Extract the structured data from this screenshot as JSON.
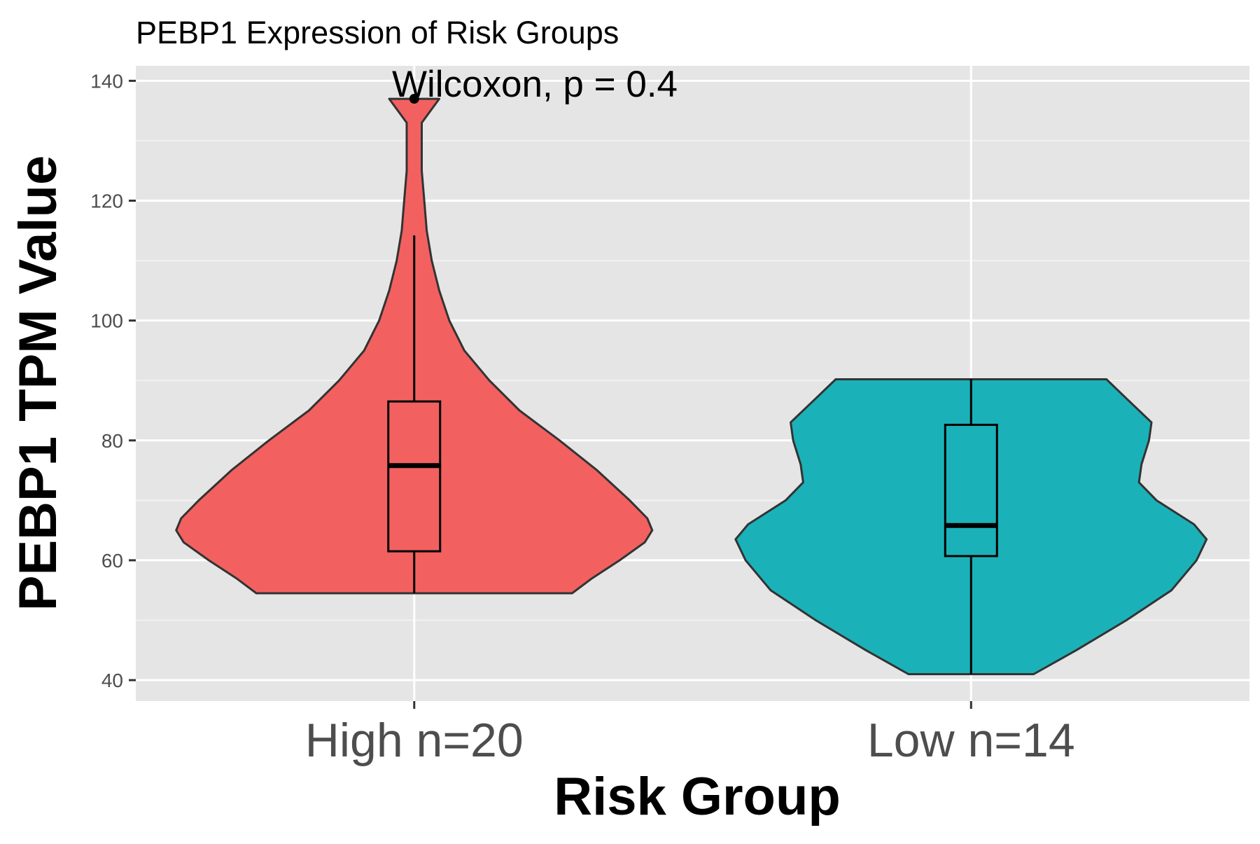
{
  "chart_data": {
    "type": "violin",
    "title": "PEBP1 Expression of Risk Groups",
    "xlabel": "Risk Group",
    "ylabel": "PEBP1 TPM Value",
    "ylim": [
      36.5,
      142.5
    ],
    "yticks": [
      40,
      60,
      80,
      100,
      120,
      140
    ],
    "grid": true,
    "legend": "none",
    "annotation": "Wilcoxon, p = 0.4",
    "categories": [
      "High n=20",
      "Low n=14"
    ],
    "groups": [
      {
        "category": "High n=20",
        "color": "#F26160",
        "range": [
          54.5,
          137
        ],
        "box": {
          "whisker_low": 54.5,
          "q1": 61.5,
          "median": 75.8,
          "q3": 86.5,
          "whisker_high": 114.2
        },
        "outliers": [
          137
        ],
        "density": [
          [
            54.5,
            0.63
          ],
          [
            57,
            0.71
          ],
          [
            60,
            0.82
          ],
          [
            63,
            0.92
          ],
          [
            65,
            0.95
          ],
          [
            67,
            0.93
          ],
          [
            70,
            0.86
          ],
          [
            75,
            0.73
          ],
          [
            80,
            0.58
          ],
          [
            85,
            0.42
          ],
          [
            90,
            0.3
          ],
          [
            95,
            0.2
          ],
          [
            100,
            0.14
          ],
          [
            105,
            0.1
          ],
          [
            110,
            0.07
          ],
          [
            115,
            0.05
          ],
          [
            120,
            0.04
          ],
          [
            125,
            0.03
          ],
          [
            130,
            0.03
          ],
          [
            133,
            0.03
          ],
          [
            137,
            0.1
          ]
        ]
      },
      {
        "category": "Low n=14",
        "color": "#1AB2B8",
        "range": [
          41,
          90.2
        ],
        "box": {
          "whisker_low": 41,
          "q1": 60.7,
          "median": 65.8,
          "q3": 82.6,
          "whisker_high": 90.2
        },
        "outliers": [],
        "density": [
          [
            41,
            0.25
          ],
          [
            45,
            0.42
          ],
          [
            50,
            0.62
          ],
          [
            55,
            0.8
          ],
          [
            60,
            0.9
          ],
          [
            63.5,
            0.94
          ],
          [
            66,
            0.89
          ],
          [
            70,
            0.74
          ],
          [
            73,
            0.67
          ],
          [
            76,
            0.68
          ],
          [
            80,
            0.71
          ],
          [
            83,
            0.72
          ],
          [
            87,
            0.62
          ],
          [
            90.2,
            0.54
          ]
        ]
      }
    ]
  }
}
